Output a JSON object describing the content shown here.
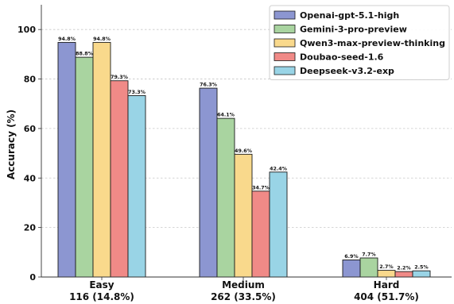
{
  "chart_data": {
    "type": "bar",
    "categories": [
      {
        "name": "Easy",
        "count": "116 (14.8%)"
      },
      {
        "name": "Medium",
        "count": "262 (33.5%)"
      },
      {
        "name": "Hard",
        "count": "404 (51.7%)"
      }
    ],
    "ylabel": "Accuracy (%)",
    "xlabel": "",
    "ylim": [
      0,
      110
    ],
    "yticks": [
      0,
      20,
      40,
      60,
      80,
      100
    ],
    "grid": "y-dashed",
    "legend_position": "top-right",
    "series": [
      {
        "name": "Openai-gpt-5.1-high",
        "color": "#8c96d1",
        "values": [
          94.8,
          76.3,
          6.9
        ],
        "labels": [
          "94.8%",
          "76.3%",
          "6.9%"
        ]
      },
      {
        "name": "Gemini-3-pro-preview",
        "color": "#a9d4a0",
        "values": [
          88.8,
          64.1,
          7.7
        ],
        "labels": [
          "88.8%",
          "64.1%",
          "7.7%"
        ]
      },
      {
        "name": "Qwen3-max-preview-thinking",
        "color": "#f9d98c",
        "values": [
          94.8,
          49.6,
          2.7
        ],
        "labels": [
          "94.8%",
          "49.6%",
          "2.7%"
        ]
      },
      {
        "name": "Doubao-seed-1.6",
        "color": "#f08a87",
        "values": [
          79.3,
          34.7,
          2.2
        ],
        "labels": [
          "79.3%",
          "34.7%",
          "2.2%"
        ]
      },
      {
        "name": "Deepseek-v3.2-exp",
        "color": "#99d4e6",
        "values": [
          73.3,
          42.4,
          2.5
        ],
        "labels": [
          "73.3%",
          "42.4%",
          "2.5%"
        ]
      }
    ]
  }
}
